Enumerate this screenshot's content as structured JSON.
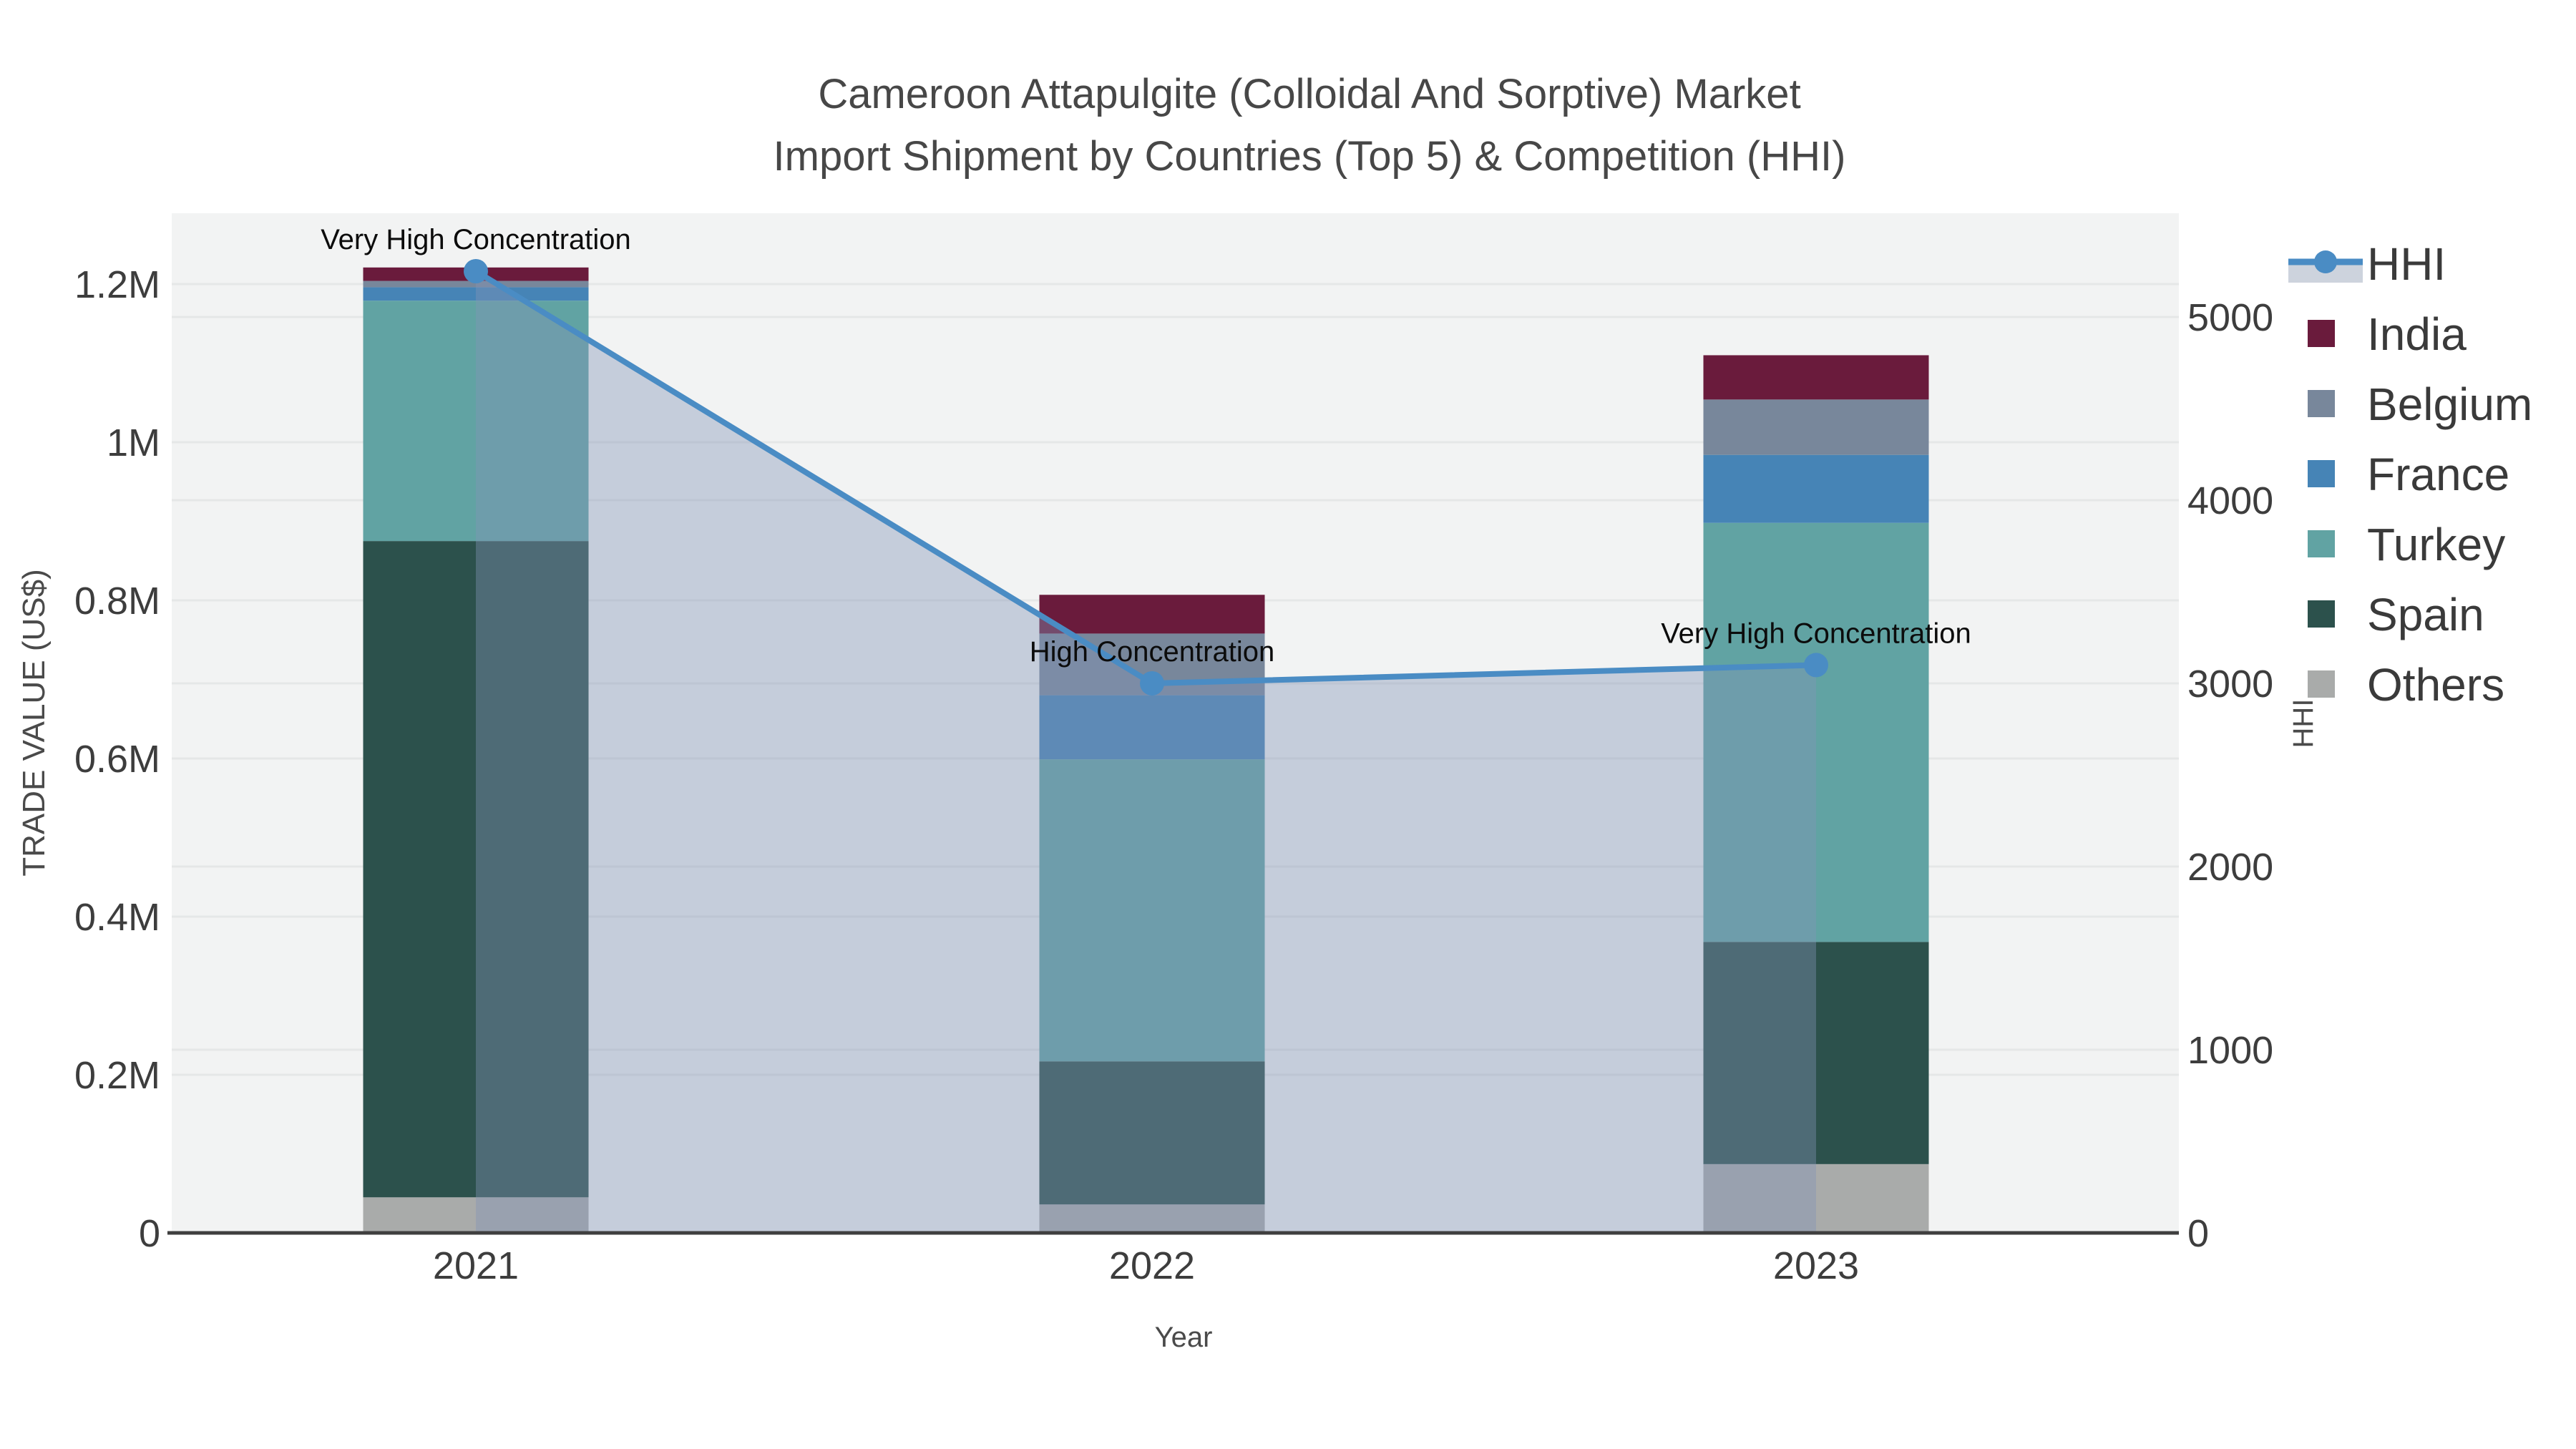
{
  "title": {
    "line1": "Cameroon Attapulgite (Colloidal And Sorptive) Market",
    "line2": "Import Shipment by Countries (Top 5) & Competition (HHI)"
  },
  "axes": {
    "left": {
      "title": "TRADE VALUE (US$)",
      "ticks": [
        "0",
        "0.2M",
        "0.4M",
        "0.6M",
        "0.8M",
        "1M",
        "1.2M"
      ]
    },
    "right": {
      "title": "HHI",
      "ticks": [
        "0",
        "1000",
        "2000",
        "3000",
        "4000",
        "5000"
      ]
    },
    "x": {
      "title": "Year",
      "ticks": [
        "2021",
        "2022",
        "2023"
      ]
    }
  },
  "legend": {
    "items": [
      {
        "label": "HHI",
        "type": "line-marker"
      },
      {
        "label": "India",
        "type": "square"
      },
      {
        "label": "Belgium",
        "type": "square"
      },
      {
        "label": "France",
        "type": "square"
      },
      {
        "label": "Turkey",
        "type": "square"
      },
      {
        "label": "Spain",
        "type": "square"
      },
      {
        "label": "Others",
        "type": "square"
      }
    ]
  },
  "colors": {
    "india": "#6a1b3c",
    "belgium": "#78879b",
    "france": "#4684b6",
    "turkey": "#61a3a3",
    "spain": "#2c514c",
    "others": "#a9abaa",
    "hhi_line": "#4a8cc4",
    "hhi_area": "rgba(130,148,182,0.4)",
    "plot_bg": "#f2f3f3",
    "gridline": "#e5e7e7",
    "axis_line": "#3f3f3f"
  },
  "chart_data": {
    "type": "bar",
    "subtype": "stacked-bars-with-secondary-line",
    "title": "Cameroon Attapulgite (Colloidal And Sorptive) Market Import Shipment by Countries (Top 5) & Competition (HHI)",
    "categories": [
      "2021",
      "2022",
      "2023"
    ],
    "xlabel": "Year",
    "ylabel_left": "TRADE VALUE (US$)",
    "ylabel_right": "HHI",
    "ylim_left": [
      0,
      1200000
    ],
    "ylim_right": [
      0,
      5000
    ],
    "grid": true,
    "legend_position": "right",
    "series": [
      {
        "name": "Others",
        "color_key": "others",
        "values": [
          45000,
          36000,
          87000
        ]
      },
      {
        "name": "Spain",
        "color_key": "spain",
        "values": [
          830000,
          181000,
          281000
        ]
      },
      {
        "name": "Turkey",
        "color_key": "turkey",
        "values": [
          304000,
          382000,
          530000
        ]
      },
      {
        "name": "France",
        "color_key": "france",
        "values": [
          17000,
          81000,
          86000
        ]
      },
      {
        "name": "Belgium",
        "color_key": "belgium",
        "values": [
          8000,
          78000,
          70000
        ]
      },
      {
        "name": "India",
        "color_key": "india",
        "values": [
          17000,
          49000,
          56000
        ]
      }
    ],
    "stack_totals": [
      1221000,
      807000,
      1110000
    ],
    "line_series": {
      "name": "HHI",
      "axis": "right",
      "values": [
        5250,
        3000,
        3100
      ],
      "area_fill": true
    },
    "annotations": [
      {
        "category": "2021",
        "text": "Very High Concentration"
      },
      {
        "category": "2022",
        "text": "High Concentration"
      },
      {
        "category": "2023",
        "text": "Very High Concentration"
      }
    ]
  }
}
